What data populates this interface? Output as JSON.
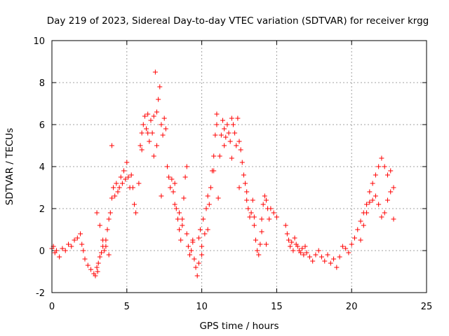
{
  "chart_data": {
    "type": "scatter",
    "title": "Day 219 of 2023, Sidereal Day-to-day VTEC variation (SDTVAR) for receiver krgg",
    "xlabel": "GPS time / hours",
    "ylabel": "SDTVAR / TECUs",
    "xlim": [
      0,
      25
    ],
    "ylim": [
      -2,
      10
    ],
    "xticks": [
      "0",
      "5",
      "10",
      "15",
      "20",
      "25"
    ],
    "yticks": [
      "-2",
      "0",
      "2",
      "4",
      "6",
      "8",
      "10"
    ],
    "grid": true,
    "marker": "plus",
    "color": "#ff0000",
    "series": [
      {
        "name": "SDTVAR",
        "x": [
          0.0,
          0.1,
          0.2,
          0.3,
          0.5,
          0.7,
          0.9,
          1.1,
          1.3,
          1.5,
          1.7,
          1.9,
          2.0,
          2.1,
          2.2,
          2.4,
          2.6,
          2.8,
          2.9,
          3.0,
          3.05,
          3.1,
          3.2,
          3.3,
          3.4,
          3.5,
          3.6,
          3.7,
          3.8,
          3.9,
          4.0,
          4.1,
          4.2,
          4.3,
          4.4,
          4.5,
          4.6,
          4.7,
          4.8,
          4.9,
          5.0,
          5.1,
          5.2,
          5.3,
          5.4,
          5.5,
          5.6,
          5.8,
          5.9,
          6.0,
          6.1,
          6.2,
          6.3,
          6.4,
          6.5,
          6.6,
          6.7,
          6.8,
          6.9,
          7.0,
          7.1,
          7.2,
          7.3,
          7.4,
          7.5,
          7.6,
          7.7,
          7.8,
          7.9,
          8.0,
          8.1,
          8.2,
          8.3,
          8.4,
          8.5,
          8.6,
          8.7,
          8.8,
          8.9,
          9.0,
          9.1,
          9.2,
          9.3,
          9.4,
          9.5,
          9.6,
          9.7,
          9.8,
          9.9,
          10.0,
          10.1,
          10.2,
          10.3,
          10.4,
          10.5,
          10.6,
          10.7,
          10.8,
          10.9,
          11.0,
          11.1,
          11.2,
          11.3,
          11.4,
          11.5,
          11.6,
          11.7,
          11.8,
          11.9,
          12.0,
          12.1,
          12.2,
          12.3,
          12.4,
          12.5,
          12.6,
          12.7,
          12.8,
          12.9,
          13.0,
          13.1,
          13.2,
          13.3,
          13.4,
          13.5,
          13.6,
          13.7,
          13.8,
          13.9,
          14.0,
          14.1,
          14.2,
          14.3,
          14.4,
          14.5,
          14.6,
          14.8,
          15.0,
          15.6,
          15.7,
          15.8,
          15.9,
          16.0,
          16.1,
          16.2,
          16.3,
          16.4,
          16.5,
          16.6,
          16.7,
          16.8,
          16.9,
          17.0,
          17.2,
          17.4,
          17.6,
          17.8,
          18.0,
          18.2,
          18.4,
          18.6,
          18.8,
          19.0,
          19.2,
          19.4,
          19.6,
          19.8,
          20.0,
          20.2,
          20.4,
          20.6,
          20.8,
          21.0,
          21.2,
          21.4,
          21.6,
          21.8,
          22.0,
          22.2,
          22.4,
          22.6,
          22.8,
          3.0,
          3.2,
          3.4,
          3.6,
          3.8,
          4.0,
          6.0,
          6.4,
          6.8,
          7.0,
          7.3,
          8.2,
          8.5,
          8.7,
          9.0,
          9.4,
          9.8,
          10.0,
          10.4,
          10.8,
          11.0,
          11.5,
          12.0,
          12.5,
          13.0,
          13.5,
          14.0,
          14.3,
          20.6,
          20.8,
          21.0,
          21.2,
          21.4,
          21.6,
          21.8,
          22.0,
          22.2,
          22.4,
          22.6,
          22.8
        ],
        "y": [
          0.1,
          0.2,
          -0.1,
          0.0,
          -0.3,
          0.1,
          0.0,
          0.3,
          0.2,
          0.5,
          0.6,
          0.8,
          0.3,
          0.0,
          -0.4,
          -0.7,
          -0.9,
          -1.1,
          -1.2,
          -0.8,
          -1.0,
          -0.6,
          -0.3,
          -0.1,
          0.2,
          0.0,
          0.5,
          1.0,
          1.5,
          1.8,
          2.5,
          3.0,
          2.6,
          3.2,
          2.8,
          3.0,
          3.5,
          3.2,
          3.8,
          3.4,
          4.2,
          3.5,
          3.0,
          3.6,
          3.0,
          2.2,
          1.8,
          3.2,
          5.0,
          5.6,
          6.0,
          6.4,
          5.8,
          6.5,
          5.2,
          6.2,
          5.6,
          6.4,
          8.5,
          6.6,
          7.2,
          7.8,
          6.0,
          5.5,
          6.3,
          5.8,
          4.0,
          3.5,
          3.0,
          3.4,
          2.8,
          3.2,
          2.0,
          1.5,
          1.0,
          0.5,
          1.5,
          2.5,
          3.5,
          4.0,
          0.2,
          -0.2,
          0.0,
          0.5,
          -0.4,
          -0.8,
          -1.2,
          0.6,
          1.0,
          -0.2,
          1.5,
          0.8,
          2.0,
          2.6,
          2.2,
          3.0,
          3.8,
          4.5,
          5.5,
          6.5,
          2.5,
          4.5,
          5.5,
          6.2,
          5.8,
          5.4,
          6.0,
          5.6,
          5.2,
          6.3,
          6.0,
          5.6,
          5.0,
          6.3,
          5.2,
          4.8,
          4.2,
          3.6,
          3.2,
          2.8,
          2.0,
          1.6,
          1.8,
          2.4,
          1.2,
          0.5,
          0.0,
          -0.2,
          0.3,
          1.5,
          2.2,
          2.6,
          2.4,
          2.0,
          1.5,
          2.0,
          1.8,
          1.6,
          1.2,
          0.8,
          0.5,
          0.2,
          0.4,
          0.0,
          0.6,
          0.3,
          0.2,
          0.0,
          -0.1,
          0.1,
          -0.2,
          0.2,
          -0.1,
          -0.3,
          -0.5,
          -0.2,
          0.0,
          -0.3,
          -0.5,
          -0.2,
          -0.6,
          -0.4,
          -0.8,
          -0.3,
          0.2,
          0.1,
          -0.1,
          0.3,
          0.6,
          1.0,
          1.4,
          1.8,
          2.2,
          2.8,
          3.2,
          3.6,
          4.0,
          4.4,
          4.0,
          3.6,
          3.8,
          1.5,
          1.8,
          1.2,
          0.5,
          0.2,
          -0.2,
          5.0,
          4.8,
          5.6,
          4.5,
          5.0,
          2.6,
          2.2,
          1.8,
          1.2,
          0.8,
          0.4,
          -0.6,
          0.2,
          1.0,
          3.8,
          6.0,
          5.0,
          4.4,
          3.0,
          2.4,
          1.6,
          0.9,
          0.3,
          0.5,
          1.2,
          1.8,
          2.3,
          2.4,
          2.6,
          2.2,
          1.6,
          1.8,
          2.4,
          2.8,
          3.0
        ]
      }
    ]
  }
}
